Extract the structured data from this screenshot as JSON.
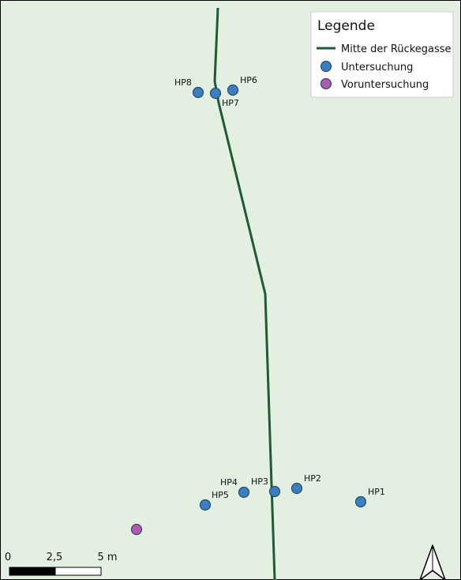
{
  "legend": {
    "title": "Legende",
    "items": [
      {
        "label": "Mitte der Rückegasse",
        "kind": "line",
        "color": "#1f5a32"
      },
      {
        "label": "Untersuchung",
        "kind": "point",
        "color": "#3a7fc2"
      },
      {
        "label": "Voruntersuchung",
        "kind": "point",
        "color": "#b15ab3"
      }
    ]
  },
  "colors": {
    "background": "#e3f0e1",
    "trail": "#1f5a32",
    "untersuchung": "#3a7fc2",
    "voruntersuchung": "#b15ab3"
  },
  "points": [
    {
      "label": "HP1",
      "type": "untersuchung"
    },
    {
      "label": "HP2",
      "type": "untersuchung"
    },
    {
      "label": "HP3",
      "type": "untersuchung"
    },
    {
      "label": "HP4",
      "type": "untersuchung"
    },
    {
      "label": "HP5",
      "type": "untersuchung"
    },
    {
      "label": "HP6",
      "type": "untersuchung"
    },
    {
      "label": "HP7",
      "type": "untersuchung"
    },
    {
      "label": "HP8",
      "type": "untersuchung"
    },
    {
      "label": "",
      "type": "voruntersuchung"
    }
  ],
  "scalebar": {
    "ticks": [
      "0",
      "2,5",
      "5 m"
    ]
  },
  "north_arrow": {
    "icon": "north-arrow-icon"
  }
}
